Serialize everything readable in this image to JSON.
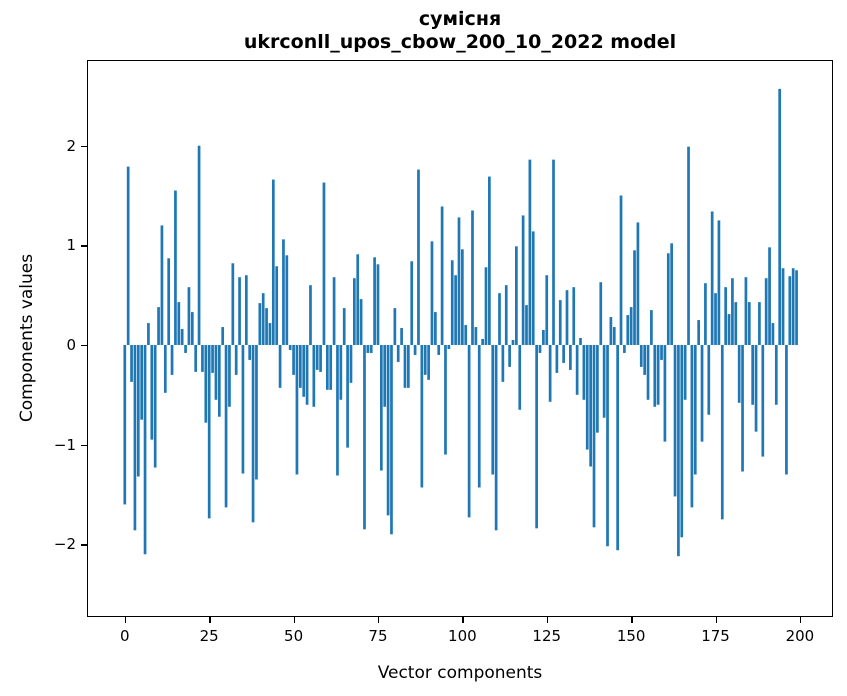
{
  "chart": {
    "title_line1": "сумісня",
    "title_line2": "ukrconll_upos_cbow_200_10_2022 model",
    "xlabel": "Vector components",
    "ylabel": "Components values"
  },
  "chart_data": {
    "type": "bar",
    "title": "сумісня",
    "subtitle": "ukrconll_upos_cbow_200_10_2022 model",
    "xlabel": "Vector components",
    "ylabel": "Components values",
    "legend_position": "none",
    "grid": false,
    "bar_color": "#1f77b4",
    "axis_color": "#000000",
    "background_color": "#ffffff",
    "xlim": [
      -10.9,
      209.5
    ],
    "ylim": [
      -2.72,
      2.85
    ],
    "xticks": [
      0,
      25,
      50,
      75,
      100,
      125,
      150,
      175,
      200
    ],
    "xtick_labels": [
      "0",
      "25",
      "50",
      "75",
      "100",
      "125",
      "150",
      "175",
      "200"
    ],
    "yticks": [
      -2,
      -1,
      0,
      1,
      2
    ],
    "ytick_labels": [
      "−2",
      "−1",
      "0",
      "1",
      "2"
    ],
    "x_description": "vector component index 0..199",
    "bar_width_data_units": 0.8,
    "values": [
      -1.6,
      1.79,
      -0.37,
      -1.86,
      -1.32,
      -0.75,
      -2.1,
      0.22,
      -0.95,
      -1.23,
      0.38,
      1.2,
      -0.48,
      0.87,
      -0.3,
      1.55,
      0.43,
      0.16,
      -0.08,
      0.58,
      0.33,
      -0.27,
      2.0,
      -0.27,
      -0.78,
      -1.74,
      -0.28,
      -0.55,
      -0.72,
      0.18,
      -1.63,
      -0.62,
      0.82,
      -0.3,
      0.68,
      -1.29,
      0.7,
      -0.15,
      -1.78,
      -1.35,
      0.42,
      0.52,
      0.37,
      0.22,
      1.66,
      0.79,
      -0.43,
      1.06,
      0.9,
      -0.05,
      -0.3,
      -1.3,
      -0.43,
      -0.52,
      -0.6,
      0.6,
      -0.62,
      -0.25,
      -0.27,
      1.63,
      -0.45,
      -0.45,
      0.68,
      -1.31,
      -0.55,
      0.37,
      -1.03,
      -0.38,
      0.67,
      0.91,
      0.46,
      -1.85,
      -0.08,
      -0.08,
      0.88,
      0.81,
      -1.26,
      -0.62,
      -1.71,
      -1.9,
      0.37,
      -0.17,
      0.17,
      -0.43,
      -0.43,
      0.84,
      -0.1,
      1.76,
      -1.43,
      -0.3,
      -0.35,
      1.04,
      0.33,
      -0.1,
      1.39,
      -1.1,
      -0.04,
      0.85,
      0.7,
      1.28,
      0.96,
      0.2,
      -1.73,
      1.35,
      0.18,
      -1.43,
      0.06,
      0.78,
      1.69,
      -1.3,
      -1.86,
      0.52,
      -0.37,
      0.6,
      -0.22,
      0.05,
      0.99,
      -0.65,
      1.3,
      0.4,
      1.86,
      1.14,
      -1.84,
      -0.08,
      0.15,
      0.7,
      -0.57,
      1.86,
      -0.28,
      0.45,
      -0.18,
      0.55,
      -0.25,
      0.58,
      -0.5,
      0.07,
      -0.55,
      -1.05,
      -1.22,
      -1.83,
      -0.88,
      0.63,
      -0.73,
      -2.02,
      0.28,
      0.18,
      -2.06,
      1.5,
      -0.08,
      0.3,
      0.38,
      0.95,
      1.23,
      -0.22,
      -0.3,
      -0.55,
      0.35,
      -0.62,
      -0.6,
      -0.15,
      -0.97,
      0.92,
      1.02,
      -1.52,
      -2.12,
      -1.93,
      -0.55,
      1.99,
      -1.63,
      -1.3,
      0.25,
      -0.97,
      0.62,
      -0.7,
      1.34,
      0.52,
      1.25,
      -1.75,
      0.58,
      0.31,
      0.67,
      0.43,
      -0.58,
      -1.27,
      0.68,
      0.43,
      -0.6,
      -0.87,
      0.43,
      -1.12,
      0.67,
      0.98,
      0.22,
      -0.6,
      2.57,
      0.77,
      -1.3,
      0.69,
      0.77,
      0.75
    ]
  }
}
